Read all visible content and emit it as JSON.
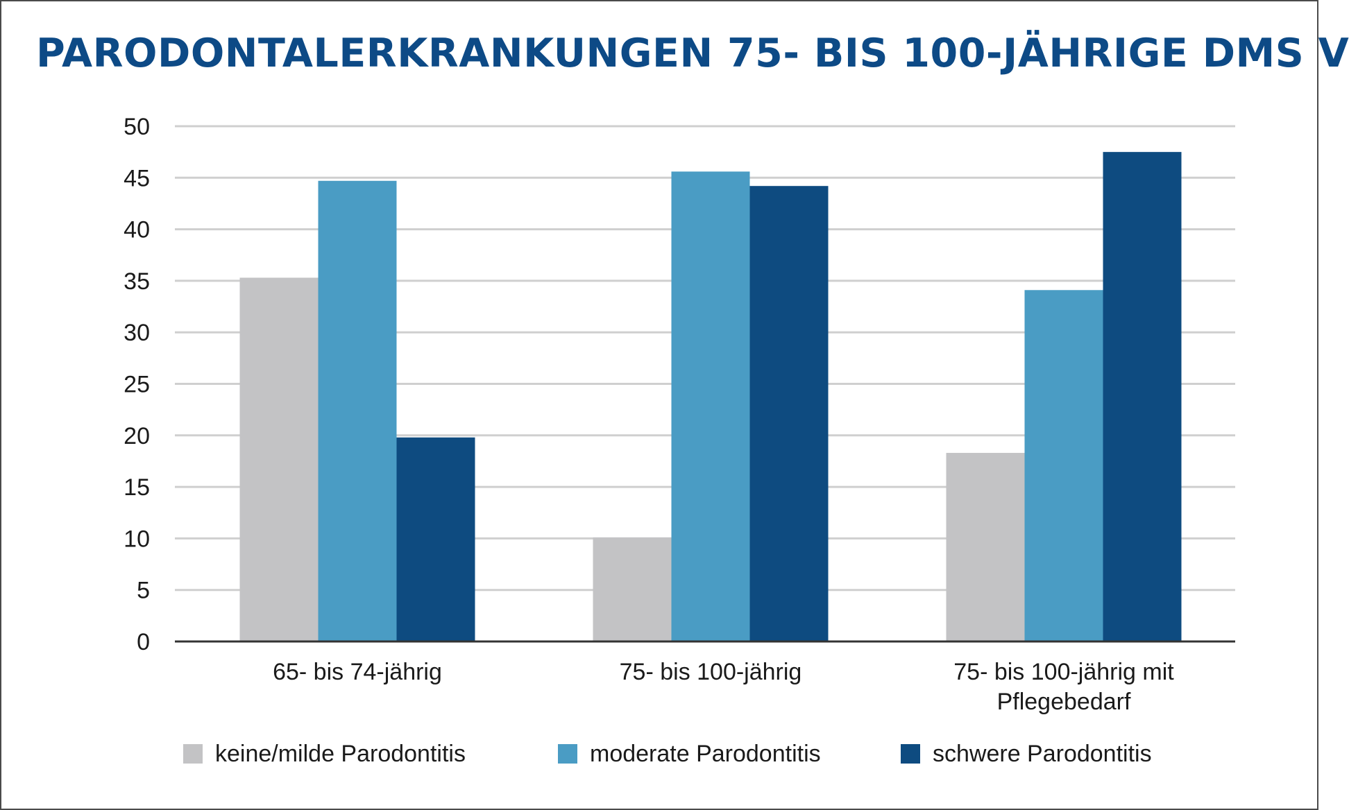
{
  "chart_data": {
    "type": "bar",
    "title": "PARODONTALERKRANKUNGEN 75- BIS 100-JÄHRIGE DMS V",
    "xlabel": "",
    "ylabel": "",
    "ylim": [
      0,
      50
    ],
    "yticks": [
      0,
      5,
      10,
      15,
      20,
      25,
      30,
      35,
      40,
      45,
      50
    ],
    "grid": true,
    "legend_position": "bottom",
    "categories": [
      [
        "65- bis 74-jährig"
      ],
      [
        "75- bis 100-jährig"
      ],
      [
        "75- bis 100-jährig mit",
        "Pflegebedarf"
      ]
    ],
    "series": [
      {
        "name": "keine/milde Parodontitis",
        "color": "#c3c3c5",
        "values": [
          35.3,
          10.1,
          18.3
        ]
      },
      {
        "name": "moderate Parodontitis",
        "color": "#4a9cc4",
        "values": [
          44.7,
          45.6,
          34.1
        ]
      },
      {
        "name": "schwere Parodontitis",
        "color": "#0e4b80",
        "values": [
          19.8,
          44.2,
          47.5
        ]
      }
    ]
  },
  "colors": {
    "title": "#0d4a86",
    "gridline": "#cfcfcf",
    "axis": "#333333"
  }
}
